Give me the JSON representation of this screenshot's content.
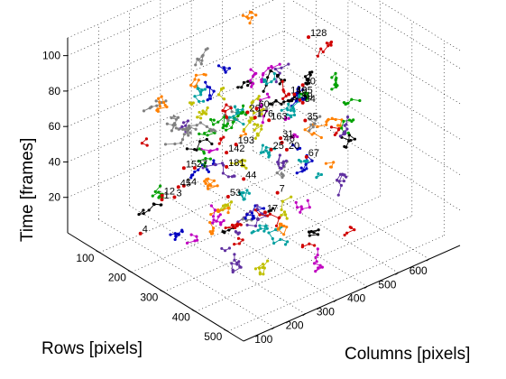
{
  "chart_data": {
    "type": "scatter",
    "projection": "3d",
    "grid": true,
    "xlabel": "Columns [pixels]",
    "ylabel": "Rows [pixels]",
    "zlabel": "Time [frames]",
    "xlim": [
      0,
      700
    ],
    "ylim": [
      0,
      550
    ],
    "zlim": [
      0,
      110
    ],
    "xticks": [
      "100",
      "200",
      "300",
      "400",
      "500",
      "600"
    ],
    "yticks": [
      "100",
      "200",
      "300",
      "400",
      "500"
    ],
    "zticks": [
      "20",
      "40",
      "60",
      "80",
      "100"
    ],
    "track_labels": [
      {
        "text": "176",
        "x": 120,
        "y": 470,
        "z": 108
      },
      {
        "text": "163",
        "x": 165,
        "y": 470,
        "z": 103
      },
      {
        "text": "146",
        "x": 260,
        "y": 440,
        "z": 107
      },
      {
        "text": "195",
        "x": 330,
        "y": 390,
        "z": 96
      },
      {
        "text": "128",
        "x": 510,
        "y": 260,
        "z": 100
      },
      {
        "text": "46",
        "x": 300,
        "y": 380,
        "z": 70
      },
      {
        "text": "67",
        "x": 400,
        "y": 360,
        "z": 52
      },
      {
        "text": "84",
        "x": 450,
        "y": 300,
        "z": 72
      },
      {
        "text": "35",
        "x": 520,
        "y": 240,
        "z": 50
      },
      {
        "text": "7",
        "x": 420,
        "y": 250,
        "z": 18
      },
      {
        "text": "17",
        "x": 380,
        "y": 250,
        "z": 10
      },
      {
        "text": "20",
        "x": 450,
        "y": 250,
        "z": 40
      },
      {
        "text": "44",
        "x": 290,
        "y": 270,
        "z": 38
      },
      {
        "text": "53",
        "x": 250,
        "y": 260,
        "z": 30
      },
      {
        "text": "1",
        "x": 160,
        "y": 140,
        "z": 22
      },
      {
        "text": "3",
        "x": 180,
        "y": 160,
        "z": 24
      },
      {
        "text": "4",
        "x": 70,
        "y": 160,
        "z": 12
      },
      {
        "text": "14",
        "x": 200,
        "y": 170,
        "z": 30
      },
      {
        "text": "15",
        "x": 200,
        "y": 170,
        "z": 40
      },
      {
        "text": "12",
        "x": 140,
        "y": 160,
        "z": 28
      },
      {
        "text": "27",
        "x": 80,
        "y": 320,
        "z": 66
      },
      {
        "text": "45",
        "x": 110,
        "y": 240,
        "z": 44
      },
      {
        "text": "26",
        "x": 230,
        "y": 340,
        "z": 88
      },
      {
        "text": "60",
        "x": 270,
        "y": 330,
        "z": 86
      },
      {
        "text": "142",
        "x": 100,
        "y": 400,
        "z": 82
      },
      {
        "text": "181",
        "x": 100,
        "y": 400,
        "z": 74
      },
      {
        "text": "193",
        "x": 110,
        "y": 420,
        "z": 88
      },
      {
        "text": "59",
        "x": 410,
        "y": 330,
        "z": 80
      },
      {
        "text": "70",
        "x": 450,
        "y": 300,
        "z": 82
      },
      {
        "text": "25",
        "x": 410,
        "y": 240,
        "z": 42
      },
      {
        "text": "31",
        "x": 430,
        "y": 250,
        "z": 48
      }
    ]
  }
}
